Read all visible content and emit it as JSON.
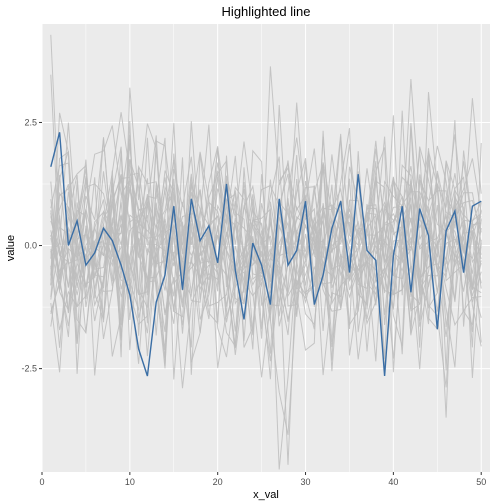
{
  "chart_data": {
    "type": "line",
    "title": "Highlighted line",
    "xlabel": "x_val",
    "ylabel": "value",
    "xlim": [
      0,
      51
    ],
    "ylim": [
      -4.6,
      4.5
    ],
    "x_ticks": [
      0,
      10,
      20,
      30,
      40,
      50
    ],
    "y_ticks": [
      -2.5,
      0.0,
      2.5
    ],
    "x_tick_labels": [
      "0",
      "10",
      "20",
      "30",
      "40",
      "50"
    ],
    "y_tick_labels": [
      "-2.5",
      "0.0",
      "2.5"
    ],
    "grid": true,
    "legend": "none",
    "colors": {
      "panel_background": "#ebebeb",
      "grid_major": "#ffffff",
      "background_lines": "#bdbdbd",
      "highlight_line": "#3a6ea5"
    },
    "x": [
      1,
      2,
      3,
      4,
      5,
      6,
      7,
      8,
      9,
      10,
      11,
      12,
      13,
      14,
      15,
      16,
      17,
      18,
      19,
      20,
      21,
      22,
      23,
      24,
      25,
      26,
      27,
      28,
      29,
      30,
      31,
      32,
      33,
      34,
      35,
      36,
      37,
      38,
      39,
      40,
      41,
      42,
      43,
      44,
      45,
      46,
      47,
      48,
      49,
      50
    ],
    "highlighted_series": {
      "values": [
        1.6,
        2.3,
        0.0,
        0.5,
        -0.4,
        -0.15,
        0.35,
        0.1,
        -0.4,
        -1.0,
        -2.1,
        -2.65,
        -1.15,
        -0.6,
        0.8,
        -0.9,
        0.95,
        0.1,
        0.4,
        -0.35,
        1.25,
        -0.5,
        -1.5,
        0.05,
        -0.4,
        -1.2,
        0.95,
        -0.4,
        -0.1,
        0.9,
        -1.2,
        -0.6,
        0.35,
        0.9,
        -0.55,
        1.45,
        -0.1,
        -0.3,
        -2.65,
        -0.2,
        0.8,
        -0.95,
        0.75,
        0.2,
        -1.7,
        0.3,
        0.7,
        -0.55,
        0.8,
        0.9
      ]
    },
    "background_series_count": 30,
    "background_series_seed": 7
  }
}
